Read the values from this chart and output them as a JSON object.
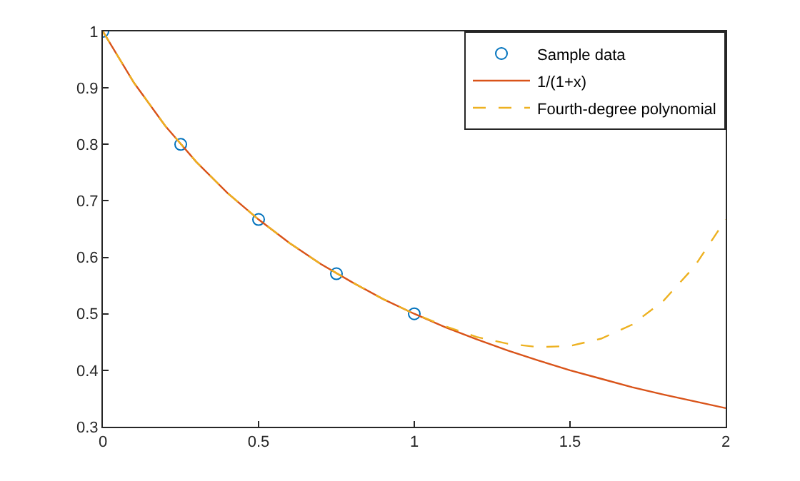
{
  "chart_data": {
    "type": "line",
    "series": [
      {
        "name": "Sample data",
        "type": "scatter",
        "marker": "circle",
        "color": "#0072bd",
        "x": [
          0,
          0.25,
          0.5,
          0.75,
          1
        ],
        "values": [
          1,
          0.8,
          0.667,
          0.571,
          0.5
        ]
      },
      {
        "name": "1/(1+x)",
        "line_style": "solid",
        "color": "#d95319",
        "x": [
          0,
          0.1,
          0.2,
          0.3,
          0.4,
          0.5,
          0.6,
          0.7,
          0.8,
          0.9,
          1,
          1.1,
          1.2,
          1.3,
          1.4,
          1.5,
          1.6,
          1.7,
          1.8,
          1.9,
          2
        ],
        "values": [
          1,
          0.909,
          0.833,
          0.769,
          0.714,
          0.667,
          0.625,
          0.588,
          0.556,
          0.526,
          0.5,
          0.476,
          0.455,
          0.435,
          0.417,
          0.4,
          0.385,
          0.37,
          0.357,
          0.345,
          0.333
        ]
      },
      {
        "name": "Fourth-degree polynomial",
        "line_style": "dashed",
        "color": "#edb120",
        "x": [
          0,
          0.1,
          0.2,
          0.3,
          0.4,
          0.5,
          0.6,
          0.7,
          0.8,
          0.9,
          1,
          1.1,
          1.2,
          1.3,
          1.4,
          1.5,
          1.6,
          1.7,
          1.8,
          1.9,
          2
        ],
        "values": [
          1,
          0.909,
          0.833,
          0.769,
          0.714,
          0.667,
          0.625,
          0.588,
          0.556,
          0.526,
          0.5,
          0.478,
          0.459,
          0.447,
          0.441,
          0.443,
          0.456,
          0.481,
          0.523,
          0.584,
          0.667
        ]
      }
    ],
    "xlim": [
      0,
      2
    ],
    "xticks": [
      0,
      0.5,
      1,
      1.5,
      2
    ],
    "ylim": [
      0.3,
      1
    ],
    "yticks": [
      0.3,
      0.4,
      0.5,
      0.6,
      0.7,
      0.8,
      0.9,
      1
    ],
    "legend": "top right"
  }
}
